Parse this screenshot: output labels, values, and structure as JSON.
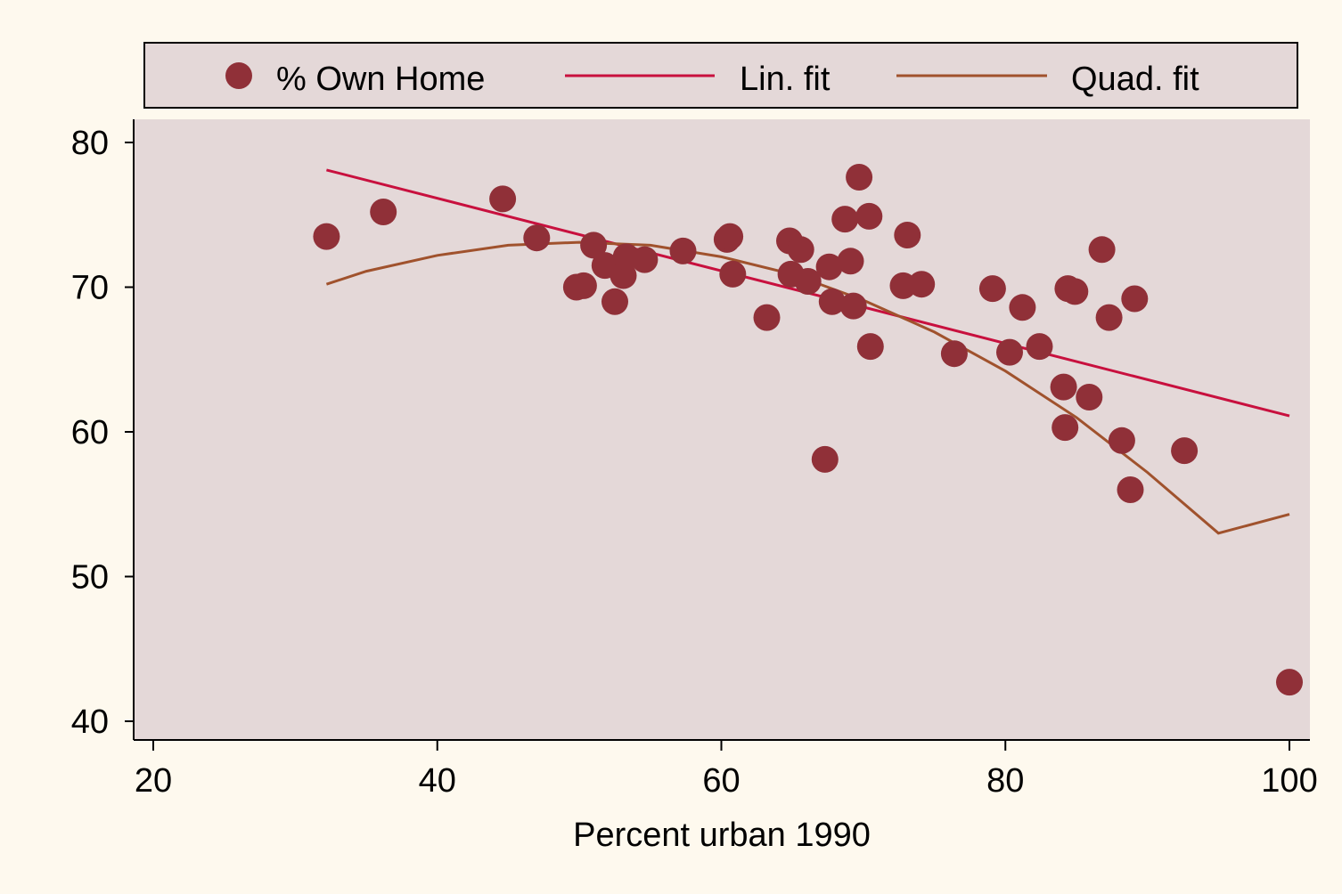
{
  "chart_data": {
    "type": "scatter",
    "title": "",
    "xlabel": "Percent urban 1990",
    "ylabel": "",
    "xlim": [
      20,
      100
    ],
    "ylim": [
      40,
      80
    ],
    "x_ticks": [
      "20",
      "40",
      "60",
      "80",
      "100"
    ],
    "y_ticks": [
      "40",
      "50",
      "60",
      "70",
      "80"
    ],
    "grid": false,
    "legend_placement": "top",
    "series": [
      {
        "name": "% Own Home",
        "kind": "scatter",
        "color": "#903038",
        "points": [
          [
            32.2,
            73.5
          ],
          [
            36.2,
            75.2
          ],
          [
            44.6,
            76.1
          ],
          [
            47.0,
            73.4
          ],
          [
            49.8,
            70.0
          ],
          [
            50.3,
            70.1
          ],
          [
            51.0,
            72.9
          ],
          [
            51.8,
            71.5
          ],
          [
            52.5,
            69.0
          ],
          [
            53.1,
            70.8
          ],
          [
            53.3,
            72.1
          ],
          [
            54.6,
            71.9
          ],
          [
            57.3,
            72.5
          ],
          [
            60.4,
            73.3
          ],
          [
            60.6,
            73.5
          ],
          [
            60.8,
            70.9
          ],
          [
            63.2,
            67.9
          ],
          [
            64.8,
            73.2
          ],
          [
            64.9,
            70.9
          ],
          [
            65.6,
            72.6
          ],
          [
            66.1,
            70.4
          ],
          [
            67.3,
            58.1
          ],
          [
            67.6,
            71.4
          ],
          [
            67.8,
            69.0
          ],
          [
            68.7,
            74.7
          ],
          [
            69.1,
            71.8
          ],
          [
            69.3,
            68.7
          ],
          [
            69.7,
            77.6
          ],
          [
            70.4,
            74.9
          ],
          [
            70.5,
            65.9
          ],
          [
            72.8,
            70.1
          ],
          [
            73.1,
            73.6
          ],
          [
            74.1,
            70.2
          ],
          [
            76.4,
            65.4
          ],
          [
            79.1,
            69.9
          ],
          [
            80.3,
            65.5
          ],
          [
            81.2,
            68.6
          ],
          [
            82.4,
            65.9
          ],
          [
            84.1,
            63.1
          ],
          [
            84.2,
            60.3
          ],
          [
            84.4,
            69.9
          ],
          [
            84.9,
            69.7
          ],
          [
            85.9,
            62.4
          ],
          [
            86.8,
            72.6
          ],
          [
            87.3,
            67.9
          ],
          [
            88.2,
            59.4
          ],
          [
            88.8,
            56.0
          ],
          [
            89.1,
            69.2
          ],
          [
            92.6,
            58.7
          ],
          [
            100.0,
            42.7
          ]
        ]
      },
      {
        "name": "Lin. fit",
        "kind": "line",
        "color": "#c8103e",
        "x": [
          32.2,
          100
        ],
        "y": [
          78.1,
          61.1
        ]
      },
      {
        "name": "Quad. fit",
        "kind": "line",
        "color": "#a0522d",
        "x": [
          32.2,
          35,
          40,
          45,
          50,
          55,
          60,
          65,
          70,
          75,
          80,
          85,
          90,
          95,
          100
        ],
        "y": [
          70.2,
          71.1,
          72.2,
          72.9,
          73.1,
          72.9,
          72.1,
          70.9,
          69.1,
          66.9,
          64.2,
          61.0,
          57.2,
          53.0,
          54.3
        ]
      }
    ],
    "colors": {
      "page_background": "#fef9ee",
      "plot_background": "#e4d8d8",
      "marker": "#903038",
      "lin_fit": "#c8103e",
      "quad_fit": "#a0522d"
    }
  }
}
